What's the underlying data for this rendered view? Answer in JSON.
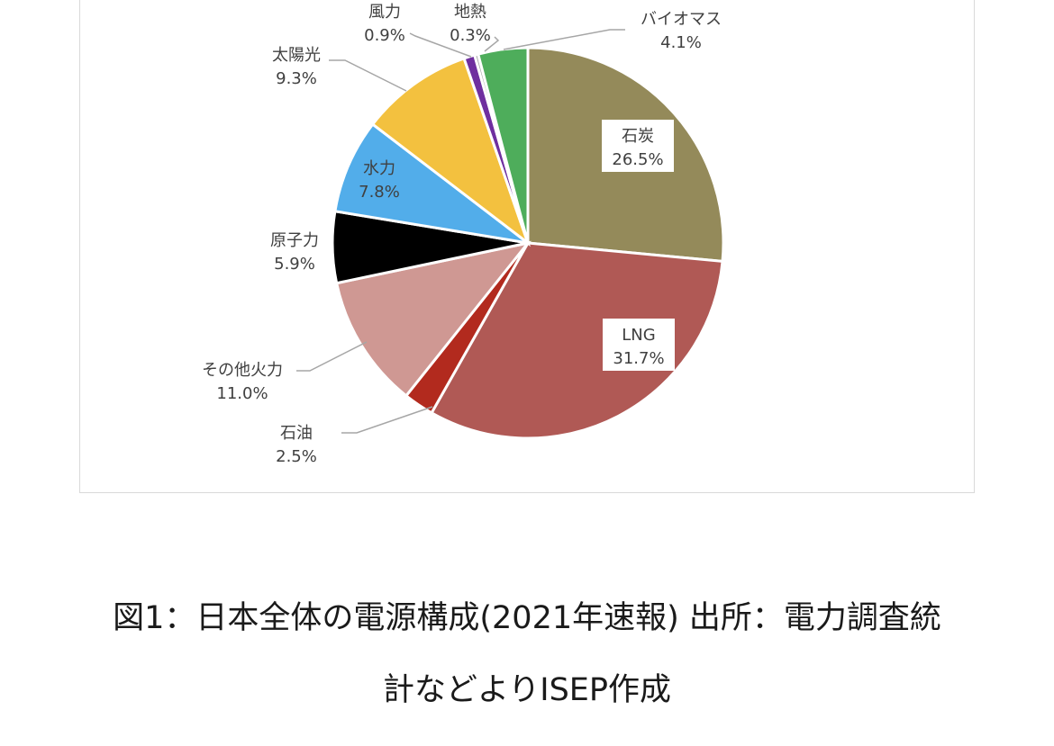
{
  "chart_data": {
    "type": "pie",
    "start_angle_deg": 0,
    "direction": "clockwise",
    "slices": [
      {
        "label": "石炭",
        "value": 26.5,
        "value_label": "26.5%",
        "color": "#948a5a",
        "label_style": "inside-box"
      },
      {
        "label": "LNG",
        "value": 31.7,
        "value_label": "31.7%",
        "color": "#b05955",
        "label_style": "inside-box"
      },
      {
        "label": "石油",
        "value": 2.5,
        "value_label": "2.5%",
        "color": "#b22a1e",
        "label_style": "outside-leader"
      },
      {
        "label": "その他火力",
        "value": 11.0,
        "value_label": "11.0%",
        "color": "#cf9893",
        "label_style": "outside-leader"
      },
      {
        "label": "原子力",
        "value": 5.9,
        "value_label": "5.9%",
        "color": "#000000",
        "label_style": "outside"
      },
      {
        "label": "水力",
        "value": 7.8,
        "value_label": "7.8%",
        "color": "#52adea",
        "label_style": "inside"
      },
      {
        "label": "太陽光",
        "value": 9.3,
        "value_label": "9.3%",
        "color": "#f3c13f",
        "label_style": "outside-leader"
      },
      {
        "label": "風力",
        "value": 0.9,
        "value_label": "0.9%",
        "color": "#6f2f9f",
        "label_style": "outside-leader"
      },
      {
        "label": "地熱",
        "value": 0.3,
        "value_label": "0.3%",
        "color": "#a6a6a6",
        "label_style": "outside-leader"
      },
      {
        "label": "バイオマス",
        "value": 4.1,
        "value_label": "4.1%",
        "color": "#4ead5b",
        "label_style": "outside-leader"
      }
    ],
    "legend": "none",
    "leader_line_color": "#a6a6a6"
  },
  "caption": {
    "line1": "図1：日本全体の電源構成(2021年速報) 出所：電力調査統",
    "line2": "計などよりISEP作成"
  }
}
